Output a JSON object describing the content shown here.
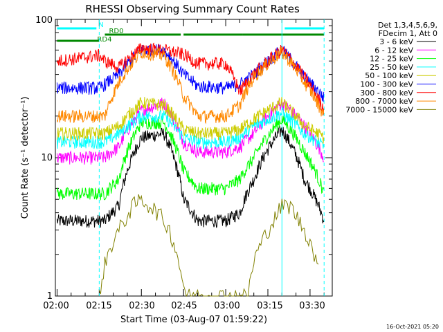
{
  "chart_data": {
    "type": "line",
    "title": "RHESSI Observing Summary Count Rates",
    "xlabel": "Start Time (03-Aug-07 01:59:22)",
    "ylabel": "Count Rate (s⁻¹ detector⁻¹)",
    "y_scale": "log",
    "ylim": [
      1,
      100
    ],
    "xlim": [
      "02:00",
      "03:37"
    ],
    "x_ticks": [
      "02:00",
      "02:15",
      "02:30",
      "02:45",
      "03:00",
      "03:15",
      "03:30"
    ],
    "y_tick_labels": [
      "1",
      "10",
      "100"
    ],
    "footer_date": "16-Oct-2021 05:20",
    "legend_header": [
      "Det 1,3,4,5,6,9,",
      "FDecim 1, Att 0"
    ],
    "series": [
      {
        "name": "3 - 6 keV",
        "color": "#000000",
        "x": [
          "02:00",
          "02:15",
          "02:17",
          "02:22",
          "02:30",
          "02:38",
          "02:45",
          "02:50",
          "03:00",
          "03:05",
          "03:10",
          "03:20",
          "03:28",
          "03:35"
        ],
        "values": [
          3.5,
          3.5,
          3.5,
          4.5,
          14,
          15,
          5,
          3.5,
          3.5,
          4,
          7,
          16,
          7,
          3.5
        ]
      },
      {
        "name": "6 - 12 keV",
        "color": "#ff00ff",
        "x": [
          "02:00",
          "02:15",
          "02:17",
          "02:22",
          "02:30",
          "02:38",
          "02:45",
          "02:50",
          "03:00",
          "03:05",
          "03:10",
          "03:20",
          "03:28",
          "03:35"
        ],
        "values": [
          10,
          10,
          10,
          12,
          22,
          25,
          13,
          11,
          11,
          12,
          15,
          25,
          17,
          10
        ]
      },
      {
        "name": "12 - 25 keV",
        "color": "#00ff00",
        "x": [
          "02:00",
          "02:15",
          "02:17",
          "02:22",
          "02:30",
          "02:38",
          "02:45",
          "02:50",
          "03:00",
          "03:05",
          "03:10",
          "03:20",
          "03:28",
          "03:35"
        ],
        "values": [
          5.5,
          5.5,
          5.5,
          7,
          18,
          18,
          8,
          6,
          6,
          7,
          10,
          19,
          11,
          5.5
        ]
      },
      {
        "name": "25 - 50 keV",
        "color": "#00ffff",
        "x": [
          "02:00",
          "02:15",
          "02:17",
          "02:22",
          "02:30",
          "02:38",
          "02:45",
          "02:50",
          "03:00",
          "03:05",
          "03:10",
          "03:20",
          "03:28",
          "03:35"
        ],
        "values": [
          13,
          13,
          13,
          15,
          20,
          20,
          14,
          13,
          13,
          14,
          17,
          21,
          15,
          12
        ]
      },
      {
        "name": "50 - 100 keV",
        "color": "#cccc00",
        "x": [
          "02:00",
          "02:15",
          "02:17",
          "02:22",
          "02:30",
          "02:38",
          "02:45",
          "02:50",
          "03:00",
          "03:05",
          "03:10",
          "03:20",
          "03:28",
          "03:35"
        ],
        "values": [
          15,
          15,
          15,
          17,
          25,
          24,
          16,
          15,
          15,
          16,
          19,
          25,
          17,
          14
        ]
      },
      {
        "name": "100 - 300 keV",
        "color": "#0000ff",
        "x": [
          "02:00",
          "02:15",
          "02:17",
          "02:22",
          "02:30",
          "02:38",
          "02:45",
          "02:50",
          "03:00",
          "03:05",
          "03:10",
          "03:20",
          "03:28",
          "03:35"
        ],
        "values": [
          32,
          32,
          34,
          40,
          60,
          60,
          40,
          33,
          32,
          34,
          40,
          60,
          38,
          27
        ]
      },
      {
        "name": "300 - 800 keV",
        "color": "#ff0000",
        "x": [
          "02:00",
          "02:15",
          "02:17",
          "02:22",
          "02:30",
          "02:38",
          "02:45",
          "02:50",
          "03:00",
          "03:05",
          "03:10",
          "03:20",
          "03:28",
          "03:35"
        ],
        "values": [
          50,
          55,
          50,
          45,
          62,
          60,
          56,
          48,
          48,
          30,
          40,
          60,
          38,
          22
        ]
      },
      {
        "name": "800 - 7000 keV",
        "color": "#ff8800",
        "x": [
          "02:00",
          "02:15",
          "02:17",
          "02:22",
          "02:30",
          "02:38",
          "02:45",
          "02:50",
          "03:00",
          "03:05",
          "03:10",
          "03:20",
          "03:28",
          "03:35"
        ],
        "values": [
          20,
          20,
          20,
          35,
          58,
          55,
          28,
          20,
          20,
          24,
          38,
          58,
          35,
          20
        ]
      },
      {
        "name": "7000 - 15000 keV",
        "color": "#808000",
        "x": [
          "02:15",
          "02:17",
          "02:20",
          "02:24",
          "02:27",
          "02:30",
          "02:33",
          "02:36",
          "02:40",
          "02:44",
          "02:46",
          "03:08",
          "03:10",
          "03:13",
          "03:17",
          "03:20",
          "03:23",
          "03:26",
          "03:30",
          "03:33"
        ],
        "values": [
          1,
          1.7,
          2.5,
          3.5,
          4.5,
          5,
          4.5,
          4,
          3,
          1.5,
          1,
          1,
          1.8,
          2.5,
          3.5,
          4.5,
          4.5,
          3.5,
          2.5,
          1.5
        ]
      }
    ],
    "annotations": {
      "flags": [
        {
          "label": "N",
          "color": "#00ffff",
          "segments": [
            [
              "02:00",
              "02:14"
            ],
            [
              "03:21",
              "03:35"
            ]
          ]
        },
        {
          "label": "RD0",
          "color": "#008800",
          "segments": [
            [
              "02:17",
              "02:44"
            ],
            [
              "02:45",
              "03:06"
            ],
            [
              "03:06",
              "03:35"
            ]
          ]
        },
        {
          "label": "RD4",
          "color": "#008800",
          "segments": [
            [
              "02:00",
              "02:15"
            ]
          ]
        }
      ],
      "vertical_lines": [
        {
          "time": "02:15",
          "color": "#00ffff",
          "style": "dashed"
        },
        {
          "time": "03:20",
          "color": "#00ffff",
          "style": "solid"
        },
        {
          "time": "03:35",
          "color": "#00ffff",
          "style": "dashed"
        }
      ]
    }
  }
}
